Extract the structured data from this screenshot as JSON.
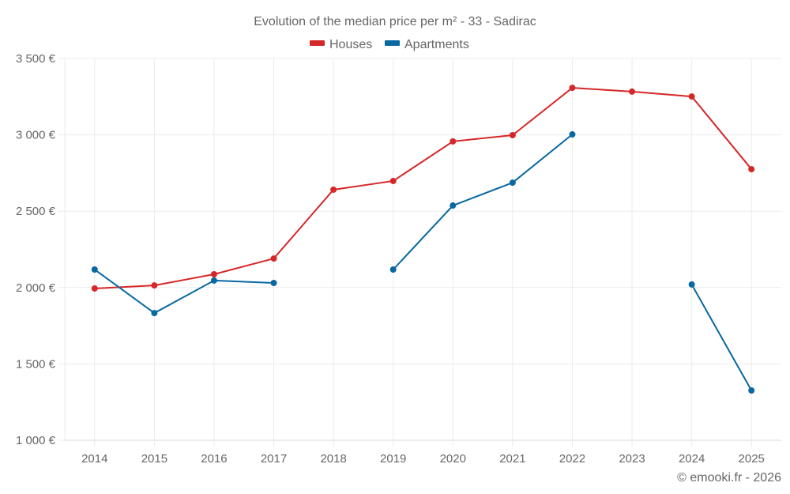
{
  "chart_data": {
    "type": "line",
    "title": "Evolution of the median price per m² - 33 - Sadirac",
    "xlabel": "",
    "ylabel": "",
    "categories": [
      "2014",
      "2015",
      "2016",
      "2017",
      "2018",
      "2019",
      "2020",
      "2021",
      "2022",
      "2023",
      "2024",
      "2025"
    ],
    "yticks": [
      1000,
      1500,
      2000,
      2500,
      3000,
      3500
    ],
    "ytick_labels": [
      "1 000 €",
      "1 500 €",
      "2 000 €",
      "2 500 €",
      "3 000 €",
      "3 500 €"
    ],
    "ylim": [
      1000,
      3500
    ],
    "grid": true,
    "legend_position": "top-center",
    "series": [
      {
        "name": "Houses",
        "color": "#d62728",
        "values": [
          1994,
          2014,
          2087,
          2190,
          2641,
          2698,
          2957,
          2998,
          3308,
          3283,
          3251,
          2775
        ]
      },
      {
        "name": "Apartments",
        "color": "#0868a0",
        "values": [
          2118,
          1833,
          2046,
          2030,
          null,
          2118,
          2537,
          2687,
          3003,
          null,
          2020,
          1326
        ]
      }
    ],
    "credit": "© emooki.fr - 2026"
  }
}
